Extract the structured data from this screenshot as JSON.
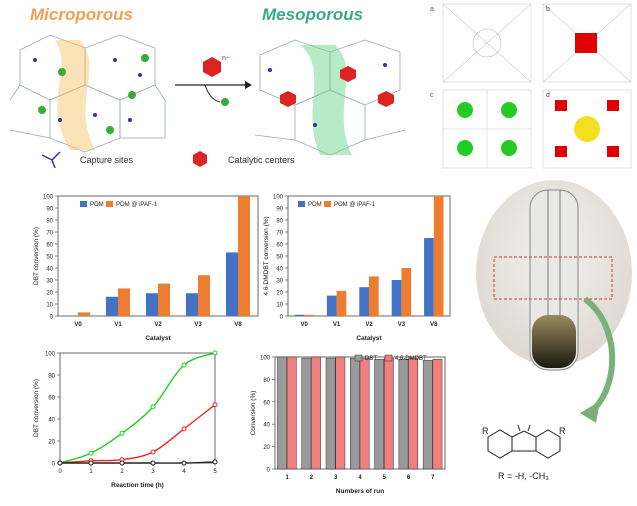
{
  "header": {
    "micro_title": "Microporous",
    "meso_title": "Mesoporous",
    "capture_label": "Capture sites",
    "catalytic_label": "Catalytic centers",
    "anion_charge": "n−",
    "colors": {
      "micro": "#f0a050",
      "meso": "#3aa88a"
    }
  },
  "crystal_views": {
    "panel_labels": [
      "a",
      "b",
      "c",
      "d"
    ]
  },
  "photo": {
    "formula": "R = -H, -CH₃",
    "substituent": "R"
  },
  "chart_data": [
    {
      "type": "bar",
      "ylabel": "DBT conversion (%)",
      "xlabel": "Catalyst",
      "categories": [
        "V0",
        "V1",
        "V2",
        "V3",
        "V8"
      ],
      "ylim": [
        0,
        100
      ],
      "yticks": [
        0,
        10,
        20,
        30,
        40,
        50,
        60,
        70,
        80,
        90,
        100
      ],
      "legend_position": "top-left",
      "series": [
        {
          "name": "POM",
          "color": "#4472c4",
          "values": [
            0,
            16,
            19,
            19,
            53
          ]
        },
        {
          "name": "POM @ iPAF-1",
          "color": "#ed7d31",
          "values": [
            3,
            23,
            27,
            34,
            100
          ]
        }
      ]
    },
    {
      "type": "bar",
      "ylabel": "4,6-DMDBT conversion (%)",
      "xlabel": "Catalyst",
      "categories": [
        "V0",
        "V1",
        "V2",
        "V3",
        "V8"
      ],
      "ylim": [
        0,
        100
      ],
      "yticks": [
        0,
        10,
        20,
        30,
        40,
        50,
        60,
        70,
        80,
        90,
        100
      ],
      "legend_position": "top-left",
      "series": [
        {
          "name": "POM",
          "color": "#4472c4",
          "values": [
            1,
            17,
            24,
            30,
            65
          ]
        },
        {
          "name": "POM @ iPAF-1",
          "color": "#ed7d31",
          "values": [
            1,
            21,
            33,
            40,
            100
          ]
        }
      ]
    },
    {
      "type": "line",
      "ylabel": "DBT conversion (%)",
      "xlabel": "Reaction time (h)",
      "x": [
        0,
        1,
        2,
        3,
        4,
        5
      ],
      "xlim": [
        0,
        5
      ],
      "ylim": [
        0,
        100
      ],
      "xticks": [
        0,
        1,
        2,
        3,
        4,
        5
      ],
      "yticks": [
        0,
        20,
        40,
        60,
        80,
        100
      ],
      "series": [
        {
          "color": "#22cc22",
          "values": [
            0,
            9,
            27,
            51,
            89,
            100
          ]
        },
        {
          "color": "#ee2222",
          "values": [
            0,
            2,
            3,
            10,
            31,
            53
          ]
        },
        {
          "color": "#222222",
          "values": [
            0,
            0,
            0,
            0,
            0,
            1
          ]
        }
      ]
    },
    {
      "type": "bar",
      "ylabel": "Conversion (%)",
      "xlabel": "Numbers of run",
      "categories": [
        "1",
        "2",
        "3",
        "4",
        "5",
        "6",
        "7"
      ],
      "ylim": [
        0,
        100
      ],
      "yticks": [
        0,
        20,
        40,
        60,
        80,
        100
      ],
      "legend_position": "top",
      "series": [
        {
          "name": "DBT",
          "color": "#9a9a9a",
          "values": [
            100,
            99,
            99,
            99,
            98,
            98,
            97
          ]
        },
        {
          "name": "4,6-DMDBT",
          "color": "#f08080",
          "values": [
            100,
            100,
            100,
            99,
            99,
            99,
            98
          ]
        }
      ]
    }
  ]
}
